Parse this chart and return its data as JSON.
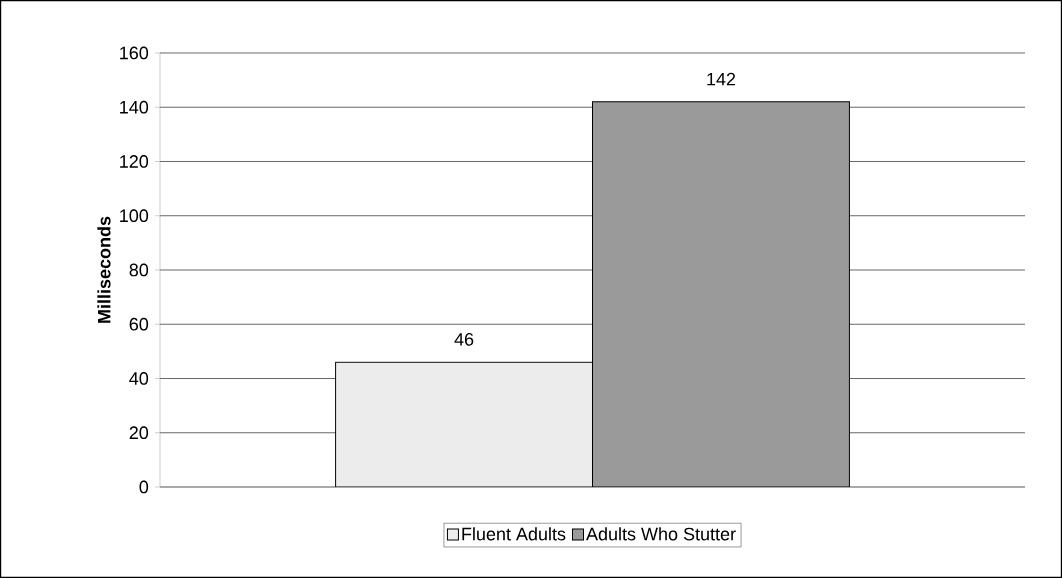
{
  "chart_data": {
    "type": "bar",
    "ylabel": "Milliseconds",
    "categories": [
      null
    ],
    "series": [
      {
        "name": "Fluent Adults",
        "color": "#ececec",
        "values": [
          46
        ]
      },
      {
        "name": "Adults Who Stutter",
        "color": "#9a9a9a",
        "values": [
          142
        ]
      }
    ],
    "ylim": [
      0,
      160
    ],
    "yticks": [
      0,
      20,
      40,
      60,
      80,
      100,
      120,
      140,
      160
    ],
    "grid": "y",
    "legend": "bottom",
    "data_labels": true
  }
}
